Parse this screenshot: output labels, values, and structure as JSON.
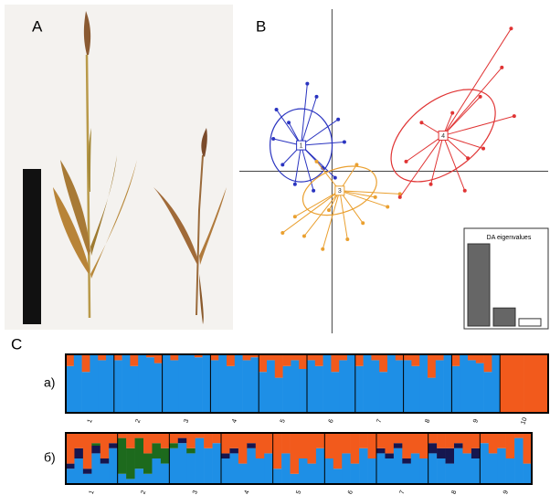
{
  "panels": {
    "a": "A",
    "b": "B",
    "c": "C"
  },
  "scatter": {
    "xlim": [
      -3,
      7
    ],
    "ylim": [
      -5,
      5
    ],
    "groups": [
      {
        "name": "1",
        "color": "#2a34c0",
        "center": [
          -1,
          0.8
        ],
        "points": [
          [
            -1.8,
            1.9
          ],
          [
            -0.5,
            2.3
          ],
          [
            0.2,
            1.6
          ],
          [
            -1.6,
            0.2
          ],
          [
            -0.3,
            0.1
          ],
          [
            -1.2,
            -0.4
          ],
          [
            0.4,
            0.9
          ],
          [
            -1.9,
            1.0
          ],
          [
            -0.8,
            2.7
          ],
          [
            0.1,
            -0.2
          ],
          [
            -1.4,
            1.5
          ],
          [
            -0.6,
            -0.6
          ]
        ]
      },
      {
        "name": "3",
        "color": "#eaa030",
        "center": [
          0.25,
          -0.6
        ],
        "points": [
          [
            -1.6,
            -1.9
          ],
          [
            -0.9,
            -2.0
          ],
          [
            -0.3,
            -2.4
          ],
          [
            1.4,
            -0.8
          ],
          [
            2.2,
            -0.7
          ],
          [
            0.8,
            0.2
          ],
          [
            -0.5,
            0.3
          ],
          [
            1.0,
            -1.6
          ],
          [
            -1.2,
            -1.4
          ],
          [
            0.5,
            -2.1
          ],
          [
            1.8,
            -1.1
          ],
          [
            -0.1,
            -1.2
          ]
        ]
      },
      {
        "name": "4",
        "color": "#e03434",
        "center": [
          3.6,
          1.1
        ],
        "points": [
          [
            5.8,
            4.4
          ],
          [
            5.5,
            3.2
          ],
          [
            4.8,
            2.3
          ],
          [
            5.9,
            1.7
          ],
          [
            4.4,
            0.4
          ],
          [
            3.2,
            -0.4
          ],
          [
            2.4,
            0.3
          ],
          [
            2.2,
            -0.8
          ],
          [
            4.3,
            -0.6
          ],
          [
            3.9,
            1.8
          ],
          [
            2.9,
            1.5
          ],
          [
            4.9,
            0.7
          ]
        ]
      }
    ]
  },
  "eigen": {
    "title": "DA eigenvalues",
    "values": [
      100,
      22,
      9
    ]
  },
  "structure": [
    {
      "label": "а)",
      "pops": [
        "1",
        "2",
        "3",
        "4",
        "5",
        "6",
        "7",
        "8",
        "9",
        "10"
      ],
      "individuals": [
        [
          [
            0.8,
            0.2
          ],
          [
            1,
            0
          ],
          [
            0.7,
            0.3
          ],
          [
            1,
            0
          ],
          [
            0.9,
            0.1
          ],
          [
            1,
            0
          ]
        ],
        [
          [
            0.9,
            0.1
          ],
          [
            1,
            0
          ],
          [
            0.8,
            0.2
          ],
          [
            1,
            0
          ],
          [
            0.95,
            0.05
          ],
          [
            0.85,
            0.15
          ]
        ],
        [
          [
            1,
            0
          ],
          [
            0.9,
            0.1
          ],
          [
            1,
            0
          ],
          [
            1,
            0
          ],
          [
            0.95,
            0.05
          ],
          [
            1,
            0
          ]
        ],
        [
          [
            0.9,
            0.1
          ],
          [
            1,
            0
          ],
          [
            0.8,
            0.2
          ],
          [
            1,
            0
          ],
          [
            0.9,
            0.1
          ],
          [
            0.95,
            0.05
          ]
        ],
        [
          [
            0.7,
            0.3
          ],
          [
            0.9,
            0.1
          ],
          [
            0.6,
            0.4
          ],
          [
            0.8,
            0.2
          ],
          [
            0.9,
            0.1
          ],
          [
            0.75,
            0.25
          ]
        ],
        [
          [
            0.9,
            0.1
          ],
          [
            0.8,
            0.2
          ],
          [
            1,
            0
          ],
          [
            0.7,
            0.3
          ],
          [
            0.9,
            0.1
          ],
          [
            1,
            0
          ]
        ],
        [
          [
            0.8,
            0.2
          ],
          [
            1,
            0
          ],
          [
            0.9,
            0.1
          ],
          [
            0.7,
            0.3
          ],
          [
            1,
            0
          ],
          [
            0.9,
            0.1
          ]
        ],
        [
          [
            0.9,
            0.1
          ],
          [
            0.8,
            0.2
          ],
          [
            1,
            0
          ],
          [
            0.6,
            0.4
          ],
          [
            0.9,
            0.1
          ],
          [
            1,
            0
          ]
        ],
        [
          [
            0.8,
            0.2
          ],
          [
            1,
            0
          ],
          [
            0.9,
            0.1
          ],
          [
            0.85,
            0.15
          ],
          [
            0.7,
            0.3
          ],
          [
            1,
            0
          ]
        ],
        [
          [
            0,
            1
          ],
          [
            0,
            1
          ],
          [
            0,
            1
          ],
          [
            0,
            1
          ],
          [
            0,
            1
          ],
          [
            0,
            1
          ]
        ]
      ]
    },
    {
      "label": "б)",
      "pops": [
        "1",
        "2",
        "3",
        "4",
        "5",
        "6",
        "7",
        "8",
        "9"
      ],
      "individuals": [
        [
          [
            0.3,
            0.6,
            0,
            0.1
          ],
          [
            0.5,
            0.3,
            0,
            0.2
          ],
          [
            0.2,
            0.7,
            0,
            0.1
          ],
          [
            0.6,
            0.2,
            0.05,
            0.15
          ],
          [
            0.4,
            0.5,
            0,
            0.1
          ],
          [
            0.7,
            0.2,
            0,
            0.1
          ]
        ],
        [
          [
            0.2,
            0.1,
            0.7,
            0
          ],
          [
            0.1,
            0.3,
            0.6,
            0
          ],
          [
            0.3,
            0.1,
            0.6,
            0
          ],
          [
            0.2,
            0.4,
            0.4,
            0
          ],
          [
            0.5,
            0.2,
            0.3,
            0
          ],
          [
            0.4,
            0.3,
            0.3,
            0
          ]
        ],
        [
          [
            0.7,
            0.2,
            0.1,
            0
          ],
          [
            0.8,
            0.1,
            0,
            0.1
          ],
          [
            0.6,
            0.3,
            0.1,
            0
          ],
          [
            0.9,
            0.1,
            0,
            0
          ],
          [
            0.7,
            0.3,
            0,
            0
          ],
          [
            0.8,
            0.2,
            0,
            0
          ]
        ],
        [
          [
            0.5,
            0.4,
            0,
            0.1
          ],
          [
            0.6,
            0.3,
            0,
            0.1
          ],
          [
            0.4,
            0.6,
            0,
            0
          ],
          [
            0.7,
            0.2,
            0,
            0.1
          ],
          [
            0.5,
            0.5,
            0,
            0
          ],
          [
            0.6,
            0.4,
            0,
            0
          ]
        ],
        [
          [
            0.3,
            0.7,
            0,
            0
          ],
          [
            0.6,
            0.4,
            0,
            0
          ],
          [
            0.2,
            0.8,
            0,
            0
          ],
          [
            0.5,
            0.5,
            0,
            0
          ],
          [
            0.4,
            0.6,
            0,
            0
          ],
          [
            0.7,
            0.3,
            0,
            0
          ]
        ],
        [
          [
            0.5,
            0.5,
            0,
            0
          ],
          [
            0.3,
            0.7,
            0,
            0
          ],
          [
            0.6,
            0.4,
            0,
            0
          ],
          [
            0.4,
            0.6,
            0,
            0
          ],
          [
            0.7,
            0.3,
            0,
            0
          ],
          [
            0.5,
            0.5,
            0,
            0
          ]
        ],
        [
          [
            0.6,
            0.3,
            0,
            0.1
          ],
          [
            0.5,
            0.4,
            0,
            0.1
          ],
          [
            0.7,
            0.2,
            0,
            0.1
          ],
          [
            0.4,
            0.5,
            0,
            0.1
          ],
          [
            0.6,
            0.4,
            0,
            0
          ],
          [
            0.5,
            0.5,
            0,
            0
          ]
        ],
        [
          [
            0.6,
            0.2,
            0,
            0.2
          ],
          [
            0.5,
            0.3,
            0,
            0.2
          ],
          [
            0.4,
            0.3,
            0,
            0.3
          ],
          [
            0.7,
            0.2,
            0,
            0.1
          ],
          [
            0.6,
            0.4,
            0,
            0
          ],
          [
            0.5,
            0.3,
            0,
            0.2
          ]
        ],
        [
          [
            0.8,
            0.2,
            0,
            0
          ],
          [
            0.6,
            0.4,
            0,
            0
          ],
          [
            0.7,
            0.3,
            0,
            0
          ],
          [
            0.5,
            0.5,
            0,
            0
          ],
          [
            0.9,
            0.1,
            0,
            0
          ],
          [
            0.4,
            0.6,
            0,
            0
          ]
        ]
      ]
    }
  ],
  "structure_colors": [
    "#1e8fe6",
    "#f25a1c",
    "#1d6a1d",
    "#16164f"
  ]
}
